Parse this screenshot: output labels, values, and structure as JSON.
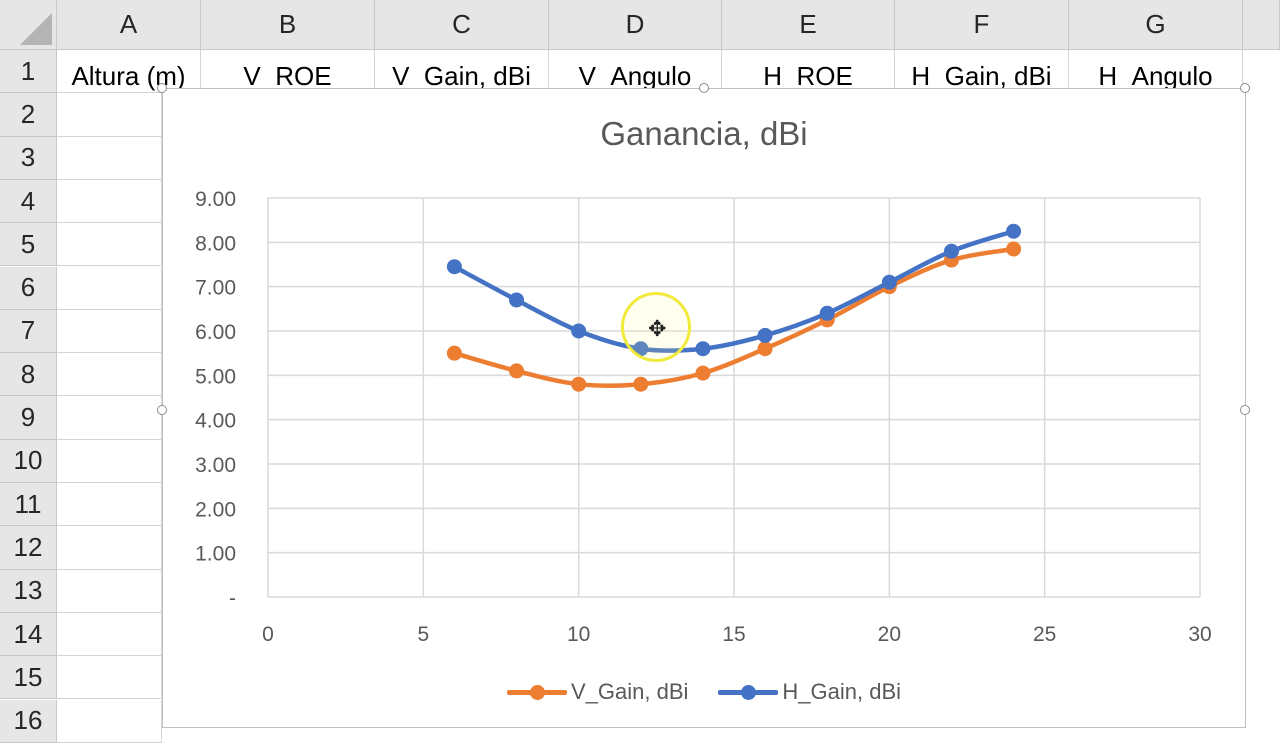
{
  "columns": [
    "A",
    "B",
    "C",
    "D",
    "E",
    "F",
    "G"
  ],
  "rows": [
    "1",
    "2",
    "3",
    "4",
    "5",
    "6",
    "7",
    "8",
    "9",
    "10",
    "11",
    "12",
    "13",
    "14",
    "15",
    "16"
  ],
  "header_row": [
    "Altura (m)",
    "V_ROE",
    "V_Gain, dBi",
    "V_Angulo",
    "H_ROE",
    "H_Gain, dBi",
    "H_Angulo"
  ],
  "chart": {
    "title": "Ganancia, dBi",
    "legend": [
      "V_Gain, dBi",
      "H_Gain, dBi"
    ]
  },
  "colors": {
    "v_series": "#ed7d31",
    "h_series": "#4472c4",
    "grid": "#d9d9d9",
    "header_bg": "#e6e6e6"
  },
  "chart_data": {
    "type": "line",
    "title": "Ganancia, dBi",
    "xlim": [
      0,
      30
    ],
    "ylim": [
      0,
      9
    ],
    "x_ticks": [
      "0",
      "5",
      "10",
      "15",
      "20",
      "25",
      "30"
    ],
    "y_ticks": [
      "-",
      "1.00",
      "2.00",
      "3.00",
      "4.00",
      "5.00",
      "6.00",
      "7.00",
      "8.00",
      "9.00"
    ],
    "grid": true,
    "legend_position": "bottom",
    "series": [
      {
        "name": "V_Gain, dBi",
        "x": [
          6,
          8,
          10,
          12,
          14,
          16,
          18,
          20,
          22,
          24
        ],
        "values": [
          5.5,
          5.1,
          4.8,
          4.8,
          5.05,
          5.6,
          6.25,
          7.0,
          7.6,
          7.85
        ]
      },
      {
        "name": "H_Gain, dBi",
        "x": [
          6,
          8,
          10,
          12,
          14,
          16,
          18,
          20,
          22,
          24
        ],
        "values": [
          7.45,
          6.7,
          6.0,
          5.6,
          5.6,
          5.9,
          6.4,
          7.1,
          7.8,
          8.25
        ]
      }
    ]
  }
}
